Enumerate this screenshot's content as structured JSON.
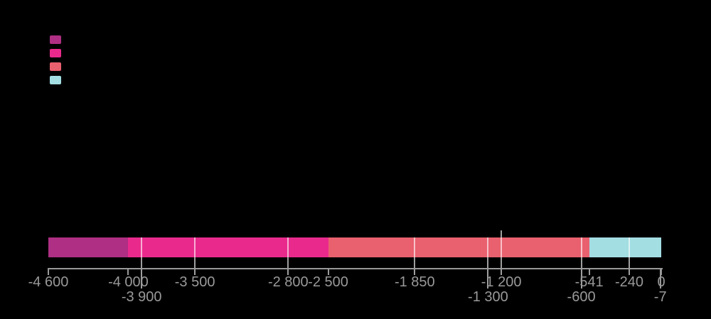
{
  "chart_data": {
    "type": "bar",
    "subtype": "horizontal-stacked-timeline",
    "title": "",
    "x_axis": {
      "min": -4600,
      "max": 0,
      "label_color": "#999999",
      "axis_color": "#999999",
      "grid": false
    },
    "segments": [
      {
        "from": -4600,
        "to": -4000,
        "color": "#ae2f83"
      },
      {
        "from": -4000,
        "to": -2500,
        "color": "#e92a8c"
      },
      {
        "from": -2500,
        "to": -541,
        "color": "#e9606f"
      },
      {
        "from": -541,
        "to": 0,
        "color": "#a3dee3"
      }
    ],
    "ticks": [
      {
        "value": -4600,
        "label": "-4 600",
        "row": 1,
        "line_through_bar": false,
        "line_extends_above_bar": false
      },
      {
        "value": -4000,
        "label": "-4 000",
        "row": 1,
        "line_through_bar": false,
        "line_extends_above_bar": false
      },
      {
        "value": -3900,
        "label": "-3 900",
        "row": 2,
        "line_through_bar": true,
        "line_extends_above_bar": false
      },
      {
        "value": -3500,
        "label": "-3 500",
        "row": 1,
        "line_through_bar": true,
        "line_extends_above_bar": false
      },
      {
        "value": -2800,
        "label": "-2 800",
        "row": 1,
        "line_through_bar": true,
        "line_extends_above_bar": false
      },
      {
        "value": -2500,
        "label": "-2 500",
        "row": 1,
        "line_through_bar": false,
        "line_extends_above_bar": false
      },
      {
        "value": -1850,
        "label": "-1 850",
        "row": 1,
        "line_through_bar": true,
        "line_extends_above_bar": false
      },
      {
        "value": -1300,
        "label": "-1 300",
        "row": 2,
        "line_through_bar": true,
        "line_extends_above_bar": false
      },
      {
        "value": -1200,
        "label": "-1 200",
        "row": 1,
        "line_through_bar": true,
        "line_extends_above_bar": true
      },
      {
        "value": -600,
        "label": "-600",
        "row": 2,
        "line_through_bar": true,
        "line_extends_above_bar": false
      },
      {
        "value": -541,
        "label": "-541",
        "row": 1,
        "line_through_bar": false,
        "line_extends_above_bar": false
      },
      {
        "value": -240,
        "label": "-240",
        "row": 1,
        "line_through_bar": true,
        "line_extends_above_bar": false
      },
      {
        "value": -7,
        "label": "-7",
        "row": 2,
        "line_through_bar": false,
        "line_extends_above_bar": false
      },
      {
        "value": 0,
        "label": "0",
        "row": 1,
        "line_through_bar": false,
        "line_extends_above_bar": false
      }
    ],
    "legend": {
      "position": "top-left",
      "items": [
        {
          "swatch_color": "#ae2f83"
        },
        {
          "swatch_color": "#e92a8c"
        },
        {
          "swatch_color": "#e9606f"
        },
        {
          "swatch_color": "#a3dee3"
        }
      ]
    },
    "colors": {
      "background": "#000000",
      "event_line": "rgba(255,255,255,0.62)"
    }
  }
}
